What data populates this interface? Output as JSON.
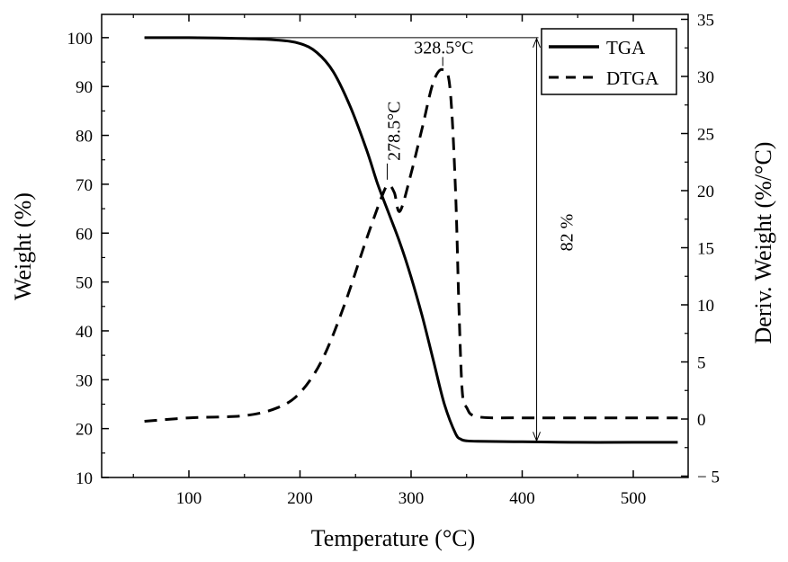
{
  "chart_data": {
    "type": "line",
    "title": "",
    "xlabel": "Temperature (°C)",
    "ylabel": "Weight (%)",
    "y2label": "Deriv. Weight (%/°C)",
    "xlim": [
      20,
      550
    ],
    "ylim": [
      10,
      105
    ],
    "y2lim": [
      -5,
      35
    ],
    "xticks": [
      100,
      200,
      300,
      400,
      500
    ],
    "yticks": [
      10,
      20,
      30,
      40,
      50,
      60,
      70,
      80,
      90,
      100
    ],
    "y2ticks": [
      -5,
      0,
      5,
      10,
      15,
      20,
      25,
      30,
      35
    ],
    "grid": false,
    "legend_position": "top-right",
    "series": [
      {
        "name": "TGA",
        "axis": "left",
        "style": "solid",
        "x": [
          60,
          100,
          150,
          180,
          200,
          215,
          230,
          245,
          260,
          270,
          280,
          290,
          300,
          310,
          320,
          330,
          340,
          345,
          350,
          360,
          400,
          450,
          500,
          540
        ],
        "y": [
          100,
          100,
          99.8,
          99.5,
          98.8,
          97,
          93,
          86,
          77,
          70,
          64,
          58,
          51,
          43,
          34,
          25,
          19,
          17.8,
          17.5,
          17.4,
          17.3,
          17.2,
          17.2,
          17.2
        ]
      },
      {
        "name": "DTGA",
        "axis": "right",
        "style": "dashed",
        "x": [
          60,
          100,
          150,
          180,
          200,
          220,
          240,
          260,
          275,
          280,
          285,
          290,
          300,
          310,
          320,
          328.5,
          335,
          340,
          343,
          346,
          350,
          360,
          400,
          450,
          500,
          540
        ],
        "y": [
          -0.2,
          0.1,
          0.3,
          1.0,
          2.3,
          5.2,
          10.0,
          15.8,
          19.8,
          20.5,
          19.8,
          18.2,
          21.5,
          25.5,
          29.5,
          30.6,
          29.0,
          20.0,
          10.0,
          2.5,
          1.0,
          0.2,
          0.1,
          0.1,
          0.1,
          0.1
        ]
      }
    ],
    "annotations": [
      {
        "text": "328.5°C",
        "x": 328.5,
        "y": 30.6,
        "axis": "right"
      },
      {
        "text": "278.5°C",
        "x": 278.5,
        "y": 20.8,
        "axis": "right"
      },
      {
        "text": "82 %",
        "x": 413,
        "from_y": 100,
        "to_y": 17.3,
        "axis": "left"
      }
    ]
  }
}
